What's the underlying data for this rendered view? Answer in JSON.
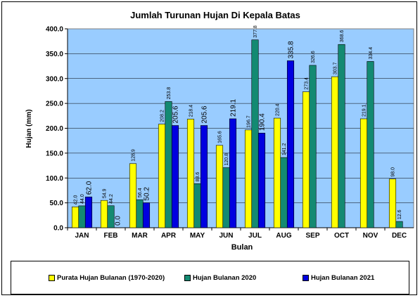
{
  "chart_data": {
    "type": "bar",
    "title": "Jumlah Turunan Hujan Di Kepala Batas",
    "xlabel": "Bulan",
    "ylabel": "Hujan (mm)",
    "ylim": [
      0,
      400
    ],
    "yticks": [
      "0.0",
      "50.0",
      "100.0",
      "150.0",
      "200.0",
      "250.0",
      "300.0",
      "350.0",
      "400.0"
    ],
    "categories": [
      "JAN",
      "FEB",
      "MAR",
      "APR",
      "MAY",
      "JUN",
      "JUL",
      "AUG",
      "SEP",
      "OCT",
      "NOV",
      "DEC"
    ],
    "legend_position": "bottom",
    "series": [
      {
        "name": "Purata Hujan Bulanan (1970-2020)",
        "color": "#ffff00",
        "values": [
          42.0,
          54.9,
          128.9,
          208.2,
          218.4,
          165.6,
          196.7,
          220.4,
          273.4,
          303.7,
          219.1,
          98.0
        ],
        "labels": [
          "42.0",
          "54.9",
          "128.9",
          "208.2",
          "218.4",
          "165.6",
          "196.7",
          "220.4",
          "273.4",
          "303.7",
          "219.1",
          "98.0"
        ]
      },
      {
        "name": "Hujan Bulanan 2020",
        "color": "#138a72",
        "values": [
          44.0,
          44.2,
          56.4,
          253.8,
          88.6,
          120.8,
          377.8,
          141.2,
          326.6,
          368.6,
          334.4,
          12.6
        ],
        "labels": [
          "44.0",
          "44.2",
          "56.4",
          "253.8",
          "88.6",
          "120.8",
          "377.8",
          "141.2",
          "326.6",
          "368.6",
          "334.4",
          "12.6"
        ]
      },
      {
        "name": "Hujan Bulanan 2021",
        "color": "#0000e0",
        "values": [
          62.0,
          0.0,
          50.2,
          205.6,
          205.6,
          219.1,
          190.4,
          335.8,
          null,
          null,
          null,
          null
        ],
        "labels": [
          "62.0",
          "0.0",
          "50.2",
          "205.6",
          "205.6",
          "219.1",
          "190.4",
          "335.8",
          null,
          null,
          null,
          null
        ]
      }
    ],
    "plot_background": "#99ccff"
  }
}
